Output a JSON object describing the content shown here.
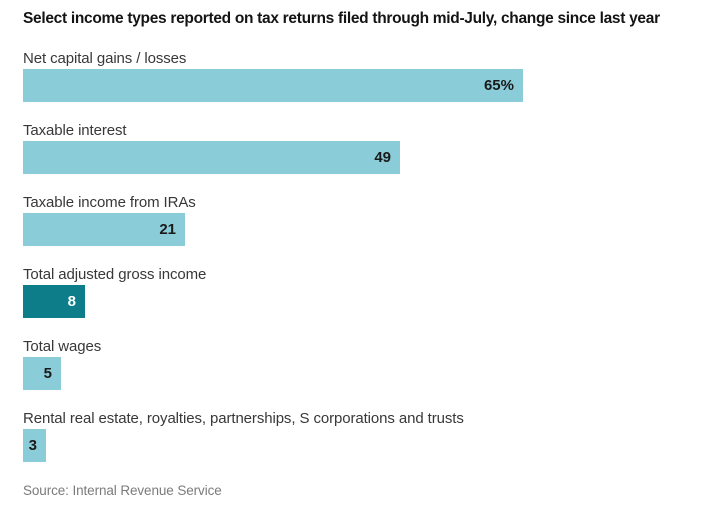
{
  "title": "Select income types reported on tax returns filed through mid-July, change since last year",
  "source": "Source: Internal Revenue Service",
  "colors": {
    "bar": "#8bccd9",
    "bar_highlight": "#0d7d8a",
    "title_text": "#141414",
    "label_text": "#383838",
    "value_text": "#1a1a1a",
    "value_text_on_highlight": "#ffffff",
    "source_text": "#7b7b7b"
  },
  "chart_data": {
    "type": "bar",
    "orientation": "horizontal",
    "title": "Select income types reported on tax returns filed through mid-July, change since last year",
    "categories": [
      "Net capital gains / losses",
      "Taxable interest",
      "Taxable income from IRAs",
      "Total adjusted gross income",
      "Total wages",
      "Rental real estate, royalties, partnerships, S corporations and trusts"
    ],
    "values": [
      65,
      49,
      21,
      8,
      5,
      3
    ],
    "value_labels": [
      "65%",
      "49",
      "21",
      "8",
      "5",
      "3"
    ],
    "unit": "percent",
    "highlighted_index": 3,
    "highlighted_category": "Total adjusted gross income",
    "xlim": [
      0,
      65
    ],
    "grid": false,
    "legend": false,
    "value_label_position": "inside-right",
    "source": "Source: Internal Revenue Service"
  }
}
